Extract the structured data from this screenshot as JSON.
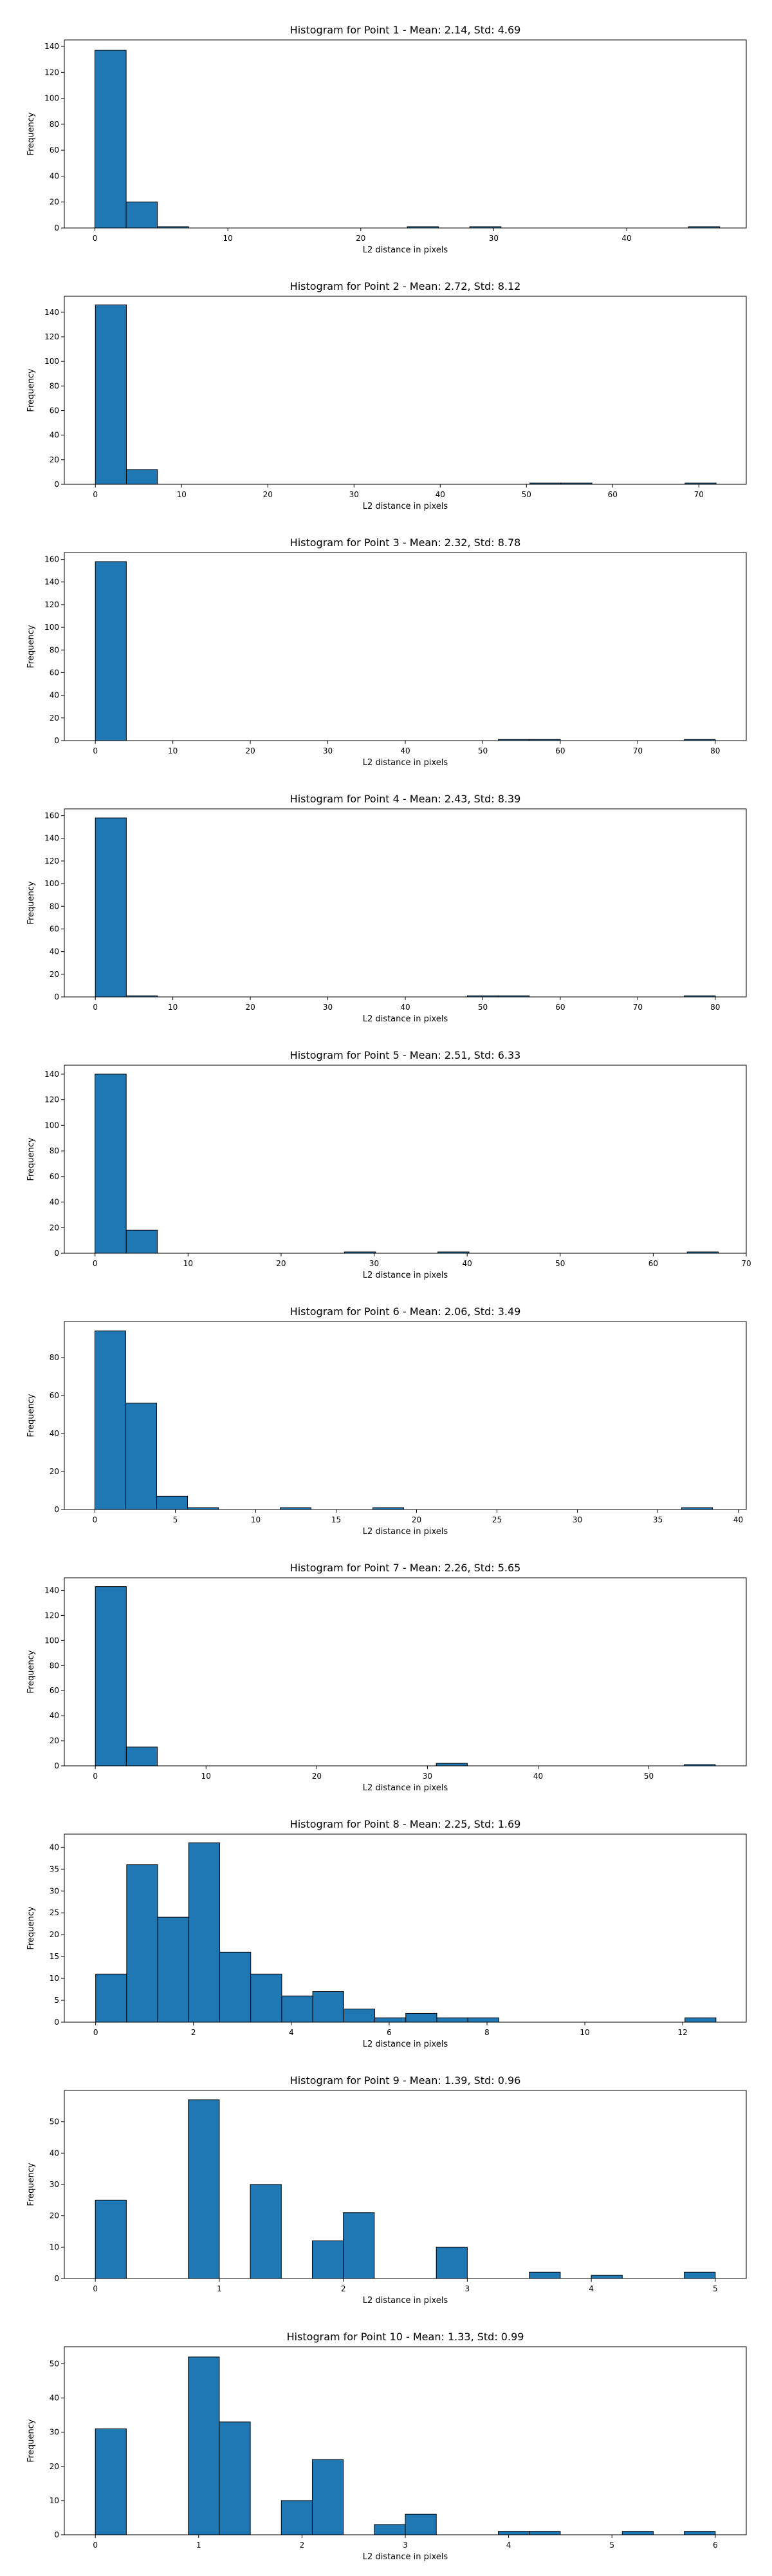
{
  "chart_data": [
    {
      "type": "bar",
      "title": "Histogram for Point 1 - Mean: 2.14, Std: 4.69",
      "xlabel": "L2 distance in pixels",
      "ylabel": "Frequency",
      "xlim": [
        -2.3,
        49.0
      ],
      "ylim": [
        0,
        145
      ],
      "xticks": [
        0,
        10,
        20,
        30,
        40
      ],
      "yticks": [
        0,
        20,
        40,
        60,
        80,
        100,
        120,
        140
      ],
      "bin_start": 0.0,
      "bin_width": 2.35,
      "values": [
        137,
        20,
        1,
        0,
        0,
        0,
        0,
        0,
        0,
        0,
        1,
        0,
        1,
        0,
        0,
        0,
        0,
        0,
        0,
        1
      ]
    },
    {
      "type": "bar",
      "title": "Histogram for Point 2 - Mean: 2.72, Std: 8.12",
      "xlabel": "L2 distance in pixels",
      "ylabel": "Frequency",
      "xlim": [
        -3.6,
        75.5
      ],
      "ylim": [
        0,
        153
      ],
      "xticks": [
        0,
        10,
        20,
        30,
        40,
        50,
        60,
        70
      ],
      "yticks": [
        0,
        20,
        40,
        60,
        80,
        100,
        120,
        140
      ],
      "bin_start": 0.0,
      "bin_width": 3.6,
      "values": [
        146,
        12,
        0,
        0,
        0,
        0,
        0,
        0,
        0,
        0,
        0,
        0,
        0,
        0,
        1,
        1,
        0,
        0,
        0,
        1
      ]
    },
    {
      "type": "bar",
      "title": "Histogram for Point 3 - Mean: 2.32, Std: 8.78",
      "xlabel": "L2 distance in pixels",
      "ylabel": "Frequency",
      "xlim": [
        -4.0,
        84.0
      ],
      "ylim": [
        0,
        166
      ],
      "xticks": [
        0,
        10,
        20,
        30,
        40,
        50,
        60,
        70,
        80
      ],
      "yticks": [
        0,
        20,
        40,
        60,
        80,
        100,
        120,
        140,
        160
      ],
      "bin_start": 0.0,
      "bin_width": 4.0,
      "values": [
        158,
        0,
        0,
        0,
        0,
        0,
        0,
        0,
        0,
        0,
        0,
        0,
        0,
        1,
        1,
        0,
        0,
        0,
        0,
        1
      ]
    },
    {
      "type": "bar",
      "title": "Histogram for Point 4 - Mean: 2.43, Std: 8.39",
      "xlabel": "L2 distance in pixels",
      "ylabel": "Frequency",
      "xlim": [
        -4.0,
        84.0
      ],
      "ylim": [
        0,
        166
      ],
      "xticks": [
        0,
        10,
        20,
        30,
        40,
        50,
        60,
        70,
        80
      ],
      "yticks": [
        0,
        20,
        40,
        60,
        80,
        100,
        120,
        140,
        160
      ],
      "bin_start": 0.0,
      "bin_width": 4.0,
      "values": [
        158,
        1,
        0,
        0,
        0,
        0,
        0,
        0,
        0,
        0,
        0,
        0,
        1,
        1,
        0,
        0,
        0,
        0,
        0,
        1
      ]
    },
    {
      "type": "bar",
      "title": "Histogram for Point 5 - Mean: 2.51, Std: 6.33",
      "xlabel": "L2 distance in pixels",
      "ylabel": "Frequency",
      "xlim": [
        -3.3,
        70.0
      ],
      "ylim": [
        0,
        147
      ],
      "xticks": [
        0,
        10,
        20,
        30,
        40,
        50,
        60,
        70
      ],
      "yticks": [
        0,
        20,
        40,
        60,
        80,
        100,
        120,
        140
      ],
      "bin_start": 0.0,
      "bin_width": 3.35,
      "values": [
        140,
        18,
        0,
        0,
        0,
        0,
        0,
        0,
        1,
        0,
        0,
        1,
        0,
        0,
        0,
        0,
        0,
        0,
        0,
        1
      ]
    },
    {
      "type": "bar",
      "title": "Histogram for Point 6 - Mean: 2.06, Std: 3.49",
      "xlabel": "L2 distance in pixels",
      "ylabel": "Frequency",
      "xlim": [
        -1.9,
        40.5
      ],
      "ylim": [
        0,
        99
      ],
      "xticks": [
        0,
        5,
        10,
        15,
        20,
        25,
        30,
        35,
        40
      ],
      "yticks": [
        0,
        20,
        40,
        60,
        80
      ],
      "bin_start": 0.0,
      "bin_width": 1.92,
      "values": [
        94,
        56,
        7,
        1,
        0,
        0,
        1,
        0,
        0,
        1,
        0,
        0,
        0,
        0,
        0,
        0,
        0,
        0,
        0,
        1
      ]
    },
    {
      "type": "bar",
      "title": "Histogram for Point 7 - Mean: 2.26, Std: 5.65",
      "xlabel": "L2 distance in pixels",
      "ylabel": "Frequency",
      "xlim": [
        -2.8,
        58.8
      ],
      "ylim": [
        0,
        150
      ],
      "xticks": [
        0,
        10,
        20,
        30,
        40,
        50
      ],
      "yticks": [
        0,
        20,
        40,
        60,
        80,
        100,
        120,
        140
      ],
      "bin_start": 0.0,
      "bin_width": 2.8,
      "values": [
        143,
        15,
        0,
        0,
        0,
        0,
        0,
        0,
        0,
        0,
        0,
        2,
        0,
        0,
        0,
        0,
        0,
        0,
        0,
        1
      ]
    },
    {
      "type": "bar",
      "title": "Histogram for Point 8 - Mean: 2.25, Std: 1.69",
      "xlabel": "L2 distance in pixels",
      "ylabel": "Frequency",
      "xlim": [
        -0.64,
        13.3
      ],
      "ylim": [
        0,
        43
      ],
      "xticks": [
        0,
        2,
        4,
        6,
        8,
        10,
        12
      ],
      "yticks": [
        0,
        5,
        10,
        15,
        20,
        25,
        30,
        35,
        40
      ],
      "bin_start": 0.0,
      "bin_width": 0.634,
      "values": [
        11,
        36,
        24,
        41,
        16,
        11,
        6,
        7,
        3,
        1,
        2,
        1,
        1,
        0,
        0,
        0,
        0,
        0,
        0,
        1
      ]
    },
    {
      "type": "bar",
      "title": "Histogram for Point 9 - Mean: 1.39, Std: 0.96",
      "xlabel": "L2 distance in pixels",
      "ylabel": "Frequency",
      "xlim": [
        -0.25,
        5.25
      ],
      "ylim": [
        0,
        60
      ],
      "xticks": [
        0,
        1,
        2,
        3,
        4,
        5
      ],
      "yticks": [
        0,
        10,
        20,
        30,
        40,
        50
      ],
      "bin_start": 0.0,
      "bin_width": 0.25,
      "values": [
        25,
        0,
        0,
        57,
        0,
        30,
        0,
        12,
        21,
        0,
        0,
        10,
        0,
        0,
        2,
        0,
        1,
        0,
        0,
        2
      ]
    },
    {
      "type": "bar",
      "title": "Histogram for Point 10 - Mean: 1.33, Std: 0.99",
      "xlabel": "L2 distance in pixels",
      "ylabel": "Frequency",
      "xlim": [
        -0.3,
        6.3
      ],
      "ylim": [
        0,
        55
      ],
      "xticks": [
        0,
        1,
        2,
        3,
        4,
        5,
        6
      ],
      "yticks": [
        0,
        10,
        20,
        30,
        40,
        50
      ],
      "bin_start": 0.0,
      "bin_width": 0.3,
      "values": [
        31,
        0,
        0,
        52,
        33,
        0,
        10,
        22,
        0,
        3,
        6,
        0,
        0,
        1,
        1,
        0,
        0,
        1,
        0,
        1
      ]
    }
  ]
}
